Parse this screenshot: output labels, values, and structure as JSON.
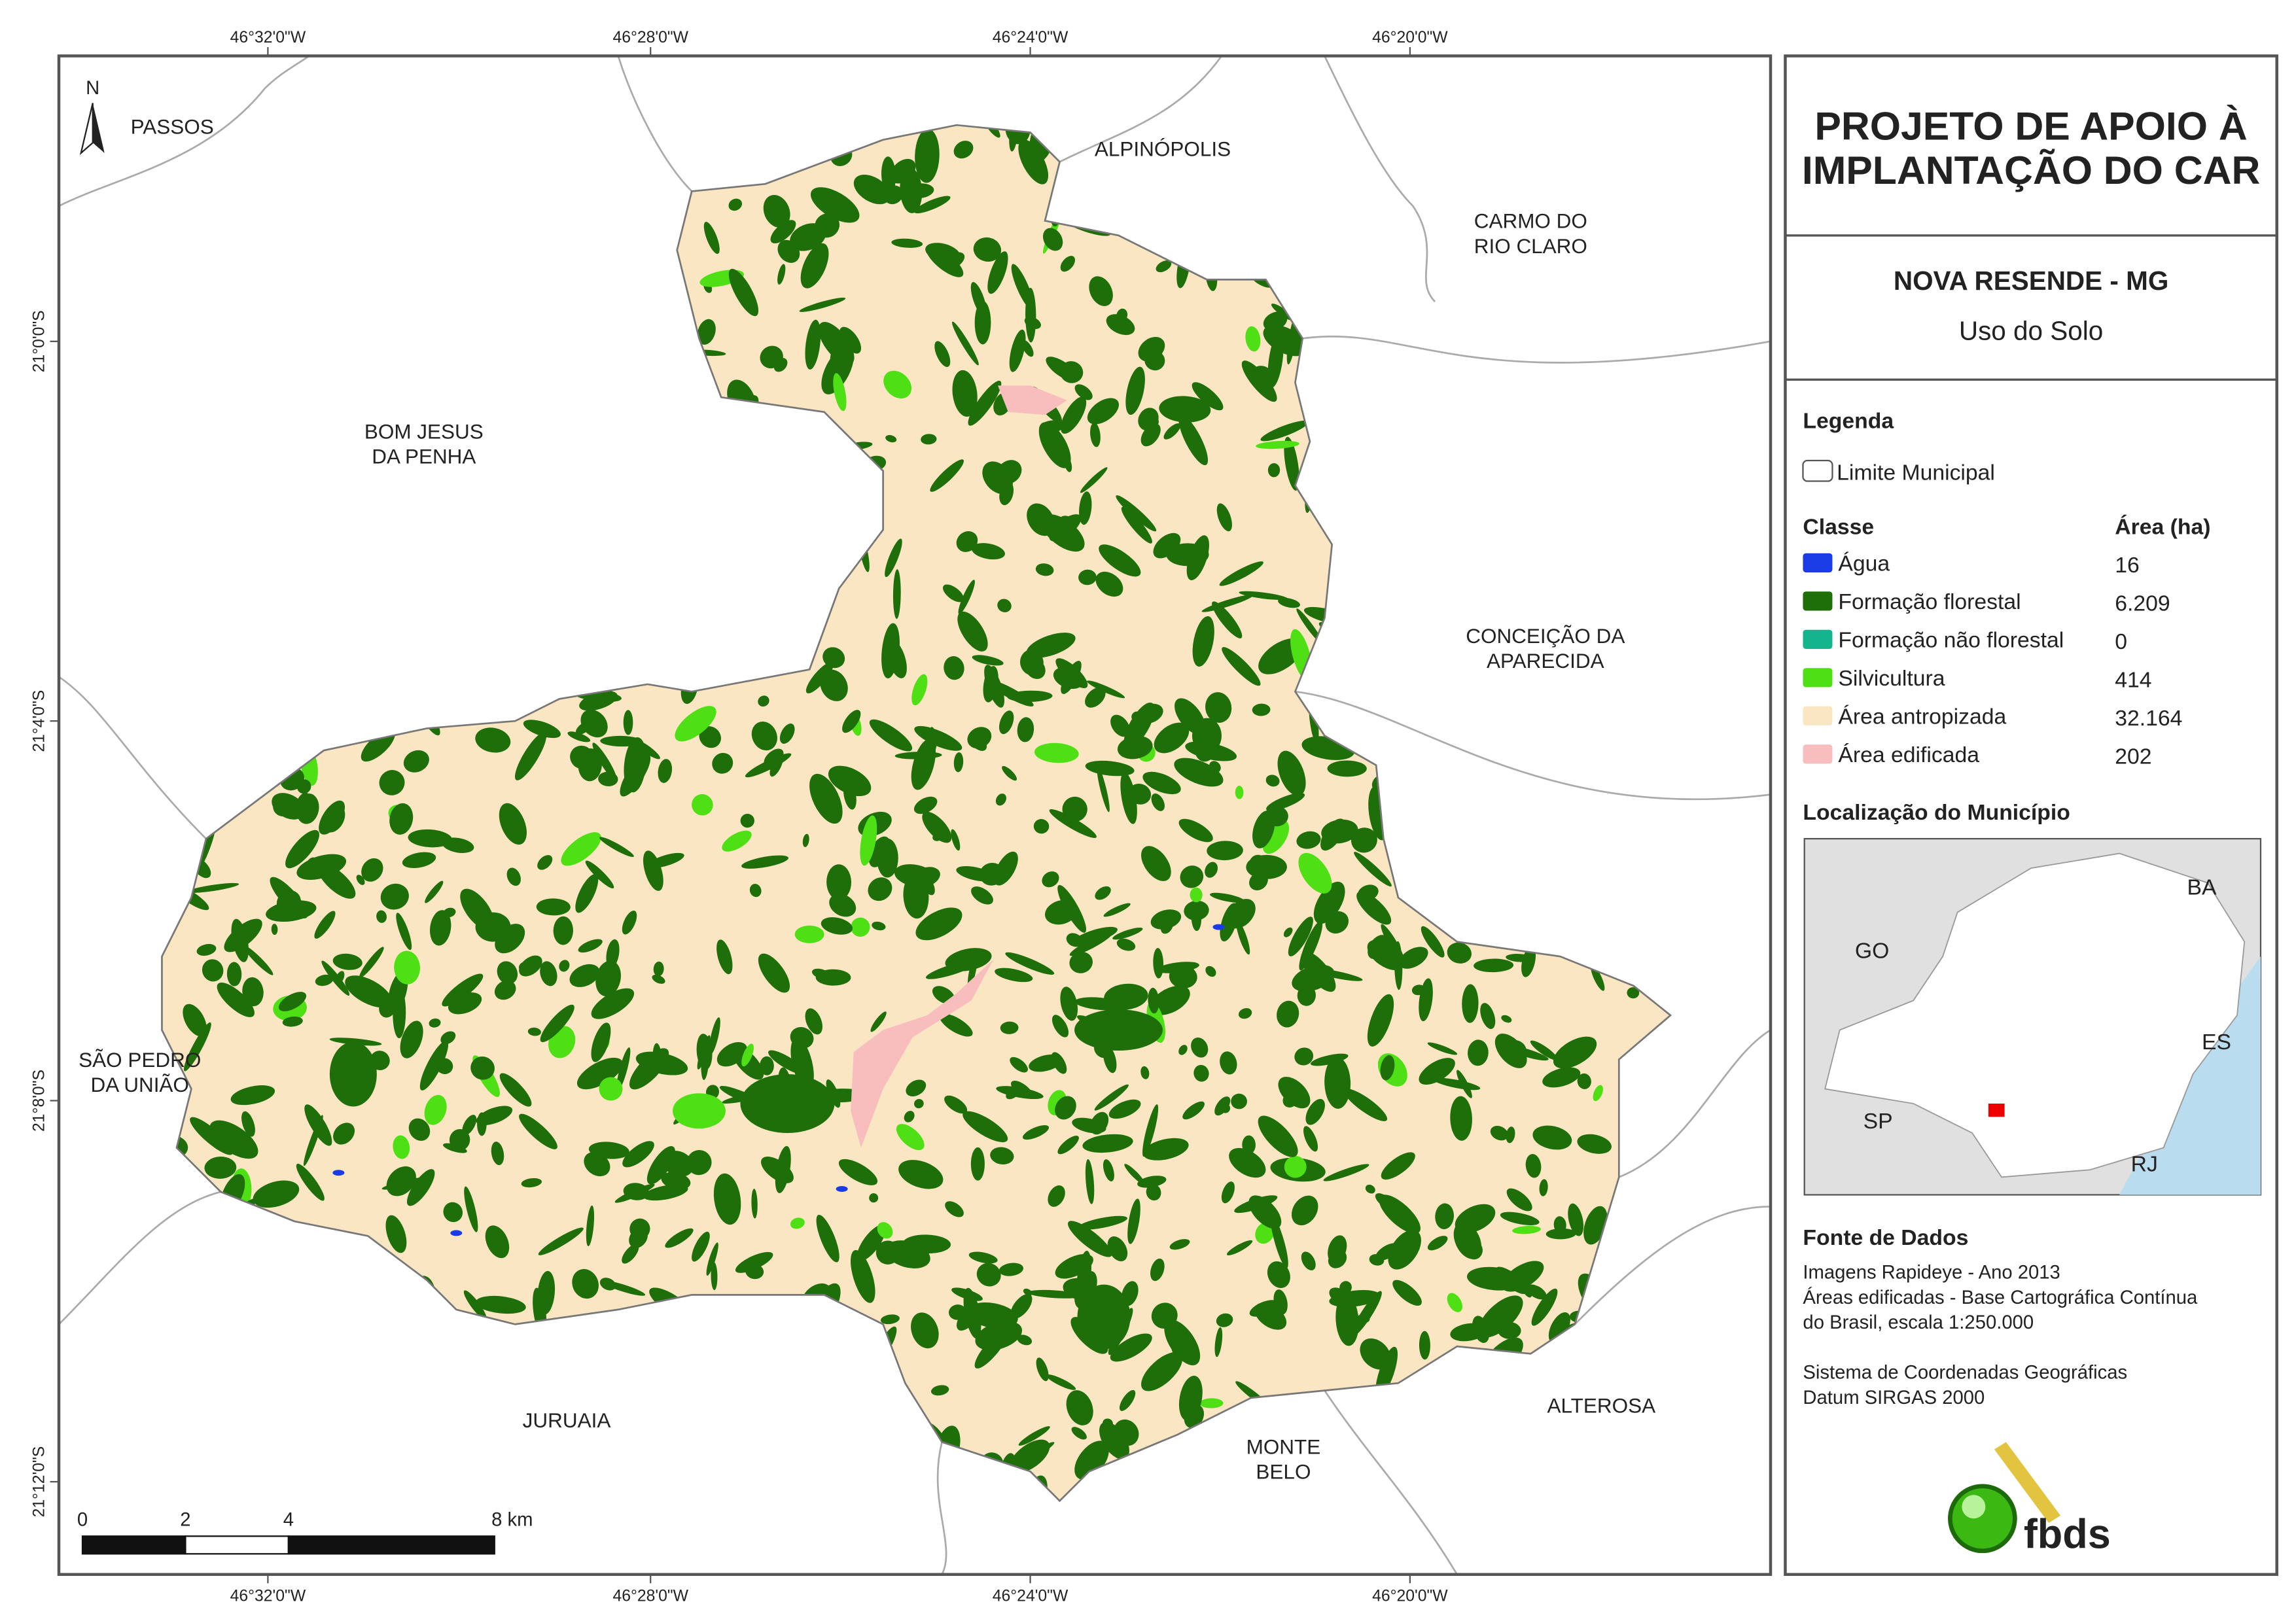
{
  "map": {
    "north": "N",
    "neighbors": [
      [
        "PASSOS"
      ],
      [
        "ALPINÓPOLIS"
      ],
      [
        "CARMO DO",
        "RIO CLARO"
      ],
      [
        "BOM JESUS",
        "DA PENHA"
      ],
      [
        "CONCEIÇÃO DA",
        "APARECIDA"
      ],
      [
        "SÃO PEDRO",
        "DA UNIÃO"
      ],
      [
        "JURUAIA"
      ],
      [
        "MONTE",
        "BELO"
      ],
      [
        "ALTEROSA"
      ]
    ],
    "top_ticks": [
      "46°32'0\"W",
      "46°28'0\"W",
      "46°24'0\"W",
      "46°20'0\"W"
    ],
    "bottom_ticks": [
      "46°32'0\"W",
      "46°28'0\"W",
      "46°24'0\"W",
      "46°20'0\"W"
    ],
    "left_ticks": [
      "21°0'0\"S",
      "21°4'0\"S",
      "21°8'0\"S",
      "21°12'0\"S"
    ],
    "scale_labels": [
      "0",
      "2",
      "4",
      "8 km"
    ]
  },
  "panel": {
    "title": [
      "PROJETO DE APOIO À",
      "IMPLANTAÇÃO DO CAR"
    ],
    "subtitle": "NOVA RESENDE - MG",
    "subtitle2": "Uso do Solo",
    "legend": {
      "heading": "Legenda",
      "boundary": "Limite Municipal",
      "class_heading": "Classe",
      "area_heading": "Área (ha)",
      "classes": [
        {
          "name": "Água",
          "color": "#1a3ce6",
          "area": "16"
        },
        {
          "name": "Formação florestal",
          "color": "#1e6e0a",
          "area": "6.209"
        },
        {
          "name": "Formação não florestal",
          "color": "#14b48c",
          "area": "0"
        },
        {
          "name": "Silvicultura",
          "color": "#4ee014",
          "area": "414"
        },
        {
          "name": "Área antropizada",
          "color": "#fae6c3",
          "area": "32.164"
        },
        {
          "name": "Área edificada",
          "color": "#f8bebe",
          "area": "202"
        }
      ]
    },
    "location": {
      "heading": "Localização do Município",
      "states": [
        "GO",
        "BA",
        "ES",
        "SP",
        "RJ"
      ]
    },
    "sources": {
      "heading": "Fonte de Dados",
      "lines": [
        "Imagens Rapideye - Ano 2013",
        "Áreas edificadas - Base Cartográfica Contínua",
        "do Brasil, escala 1:250.000",
        "Sistema de Coordenadas Geográficas",
        "Datum SIRGAS 2000"
      ]
    },
    "logo": "fbds"
  }
}
